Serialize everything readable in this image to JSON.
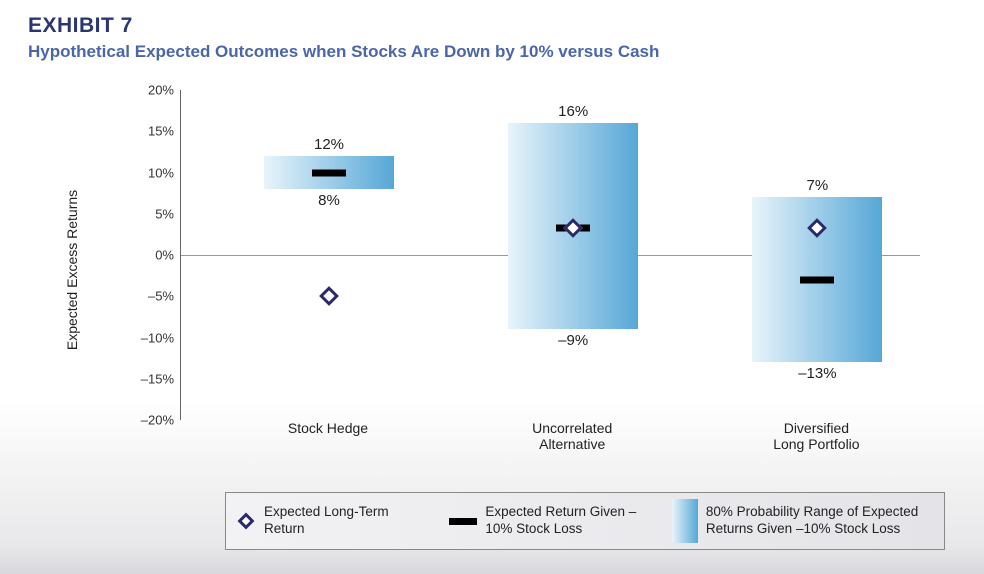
{
  "header": {
    "exhibit": "EXHIBIT 7",
    "subtitle": "Hypothetical Expected Outcomes when Stocks Are Down by 10% versus Cash",
    "title_color": "#2b3670",
    "subtitle_color": "#4b66a8"
  },
  "chart": {
    "type": "range-bar",
    "y_axis_label": "Expected Excess Returns",
    "ylim": [
      -20,
      20
    ],
    "ytick_step": 5,
    "yticks": [
      "20%",
      "15%",
      "10%",
      "5%",
      "0%",
      "–5%",
      "–10%",
      "–15%",
      "–20%"
    ],
    "ytick_values": [
      20,
      15,
      10,
      5,
      0,
      -5,
      -10,
      -15,
      -20
    ],
    "bar_gradient_from": "#e8f4fb",
    "bar_gradient_to": "#56a7d6",
    "diamond_border": "#2a2a6a",
    "dash_color": "#000000",
    "axis_color": "#666666",
    "background": "#ffffff",
    "categories": [
      {
        "label_line1": "Stock Hedge",
        "label_line2": "",
        "range_low": 8,
        "range_high": 12,
        "range_low_label": "8%",
        "range_high_label": "12%",
        "expected_return_given_loss": 10,
        "expected_long_term_return": -5
      },
      {
        "label_line1": "Uncorrelated",
        "label_line2": "Alternative",
        "range_low": -9,
        "range_high": 16,
        "range_low_label": "–9%",
        "range_high_label": "16%",
        "expected_return_given_loss": 3.3,
        "expected_long_term_return": 3.3
      },
      {
        "label_line1": "Diversified",
        "label_line2": "Long Portfolio",
        "range_low": -13,
        "range_high": 7,
        "range_low_label": "–13%",
        "range_high_label": "7%",
        "expected_return_given_loss": -3,
        "expected_long_term_return": 3.3
      }
    ]
  },
  "legend": {
    "item1": "Expected Long-Term Return",
    "item2": "Expected Return Given –10% Stock Loss",
    "item3": "80% Probability Range of Expected Returns Given –10% Stock Loss"
  }
}
